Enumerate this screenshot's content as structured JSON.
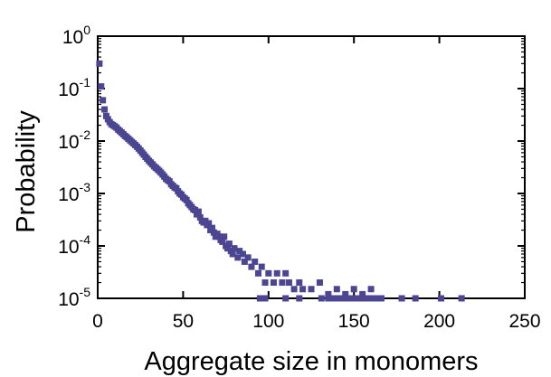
{
  "chart_data": {
    "type": "scatter",
    "title": "",
    "xlabel": "Aggregate size in monomers",
    "ylabel": "Probability",
    "xlim": [
      0,
      250
    ],
    "ylim": [
      1e-05,
      1
    ],
    "yscale": "log",
    "grid": false,
    "marker_color": "#4b4592",
    "x_ticks": [
      {
        "value": 0,
        "label": "0"
      },
      {
        "value": 50,
        "label": "50"
      },
      {
        "value": 100,
        "label": "100"
      },
      {
        "value": 150,
        "label": "150"
      },
      {
        "value": 200,
        "label": "200"
      },
      {
        "value": 250,
        "label": "250"
      }
    ],
    "y_ticks": [
      {
        "value": 1,
        "base": "10",
        "exp": "0"
      },
      {
        "value": 0.1,
        "base": "10",
        "exp": "-1"
      },
      {
        "value": 0.01,
        "base": "10",
        "exp": "-2"
      },
      {
        "value": 0.001,
        "base": "10",
        "exp": "-3"
      },
      {
        "value": 0.0001,
        "base": "10",
        "exp": "-4"
      },
      {
        "value": 1e-05,
        "base": "10",
        "exp": "-5"
      }
    ],
    "series": [
      {
        "points": [
          [
            1,
            0.3
          ],
          [
            2,
            0.11
          ],
          [
            3,
            0.06
          ],
          [
            4,
            0.04
          ],
          [
            5,
            0.03
          ],
          [
            6,
            0.026
          ],
          [
            7,
            0.023
          ],
          [
            8,
            0.021
          ],
          [
            9,
            0.02
          ],
          [
            10,
            0.019
          ],
          [
            11,
            0.018
          ],
          [
            12,
            0.0165
          ],
          [
            13,
            0.0155
          ],
          [
            14,
            0.0145
          ],
          [
            15,
            0.0135
          ],
          [
            16,
            0.0125
          ],
          [
            17,
            0.0118
          ],
          [
            18,
            0.011
          ],
          [
            19,
            0.0103
          ],
          [
            20,
            0.0096
          ],
          [
            21,
            0.009
          ],
          [
            22,
            0.0084
          ],
          [
            23,
            0.0078
          ],
          [
            24,
            0.0072
          ],
          [
            25,
            0.0066
          ],
          [
            26,
            0.006
          ],
          [
            27,
            0.0055
          ],
          [
            28,
            0.005
          ],
          [
            29,
            0.0046
          ],
          [
            30,
            0.0042
          ],
          [
            31,
            0.0039
          ],
          [
            32,
            0.0036
          ],
          [
            33,
            0.0033
          ],
          [
            34,
            0.0031
          ],
          [
            35,
            0.0029
          ],
          [
            36,
            0.0027
          ],
          [
            37,
            0.0025
          ],
          [
            38,
            0.0023
          ],
          [
            39,
            0.0021
          ],
          [
            40,
            0.0019
          ],
          [
            41,
            0.0018
          ],
          [
            42,
            0.0017
          ],
          [
            43,
            0.0015
          ],
          [
            44,
            0.0014
          ],
          [
            45,
            0.0013
          ],
          [
            46,
            0.00125
          ],
          [
            47,
            0.0011
          ],
          [
            48,
            0.001
          ],
          [
            49,
            0.00095
          ],
          [
            50,
            0.00085
          ],
          [
            51,
            0.0008
          ],
          [
            52,
            0.00075
          ],
          [
            53,
            0.00065
          ],
          [
            54,
            0.0006
          ],
          [
            55,
            0.00055
          ],
          [
            56,
            0.0005
          ],
          [
            57,
            0.00048
          ],
          [
            58,
            0.0004
          ],
          [
            59,
            0.00045
          ],
          [
            60,
            0.00035
          ],
          [
            61,
            0.0003
          ],
          [
            62,
            0.00028
          ],
          [
            63,
            0.0003
          ],
          [
            64,
            0.00025
          ],
          [
            65,
            0.00027
          ],
          [
            66,
            0.0002
          ],
          [
            67,
            0.00022
          ],
          [
            68,
            0.00018
          ],
          [
            69,
            0.00015
          ],
          [
            70,
            0.00017
          ],
          [
            71,
            0.00015
          ],
          [
            72,
            0.00013
          ],
          [
            73,
            0.00012
          ],
          [
            74,
            0.00015
          ],
          [
            75,
            0.0001
          ],
          [
            76,
            9e-05
          ],
          [
            77,
            0.00011
          ],
          [
            78,
            8e-05
          ],
          [
            79,
            7e-05
          ],
          [
            80,
            9e-05
          ],
          [
            82,
            6e-05
          ],
          [
            83,
            8e-05
          ],
          [
            85,
            7e-05
          ],
          [
            86,
            5e-05
          ],
          [
            88,
            6e-05
          ],
          [
            90,
            4e-05
          ],
          [
            92,
            5e-05
          ],
          [
            94,
            3e-05
          ],
          [
            96,
            4e-05
          ],
          [
            98,
            2e-05
          ],
          [
            100,
            3e-05
          ],
          [
            103,
            2e-05
          ],
          [
            105,
            3e-05
          ],
          [
            108,
            2e-05
          ],
          [
            110,
            3e-05
          ],
          [
            112,
            2e-05
          ],
          [
            115,
            1.5e-05
          ],
          [
            118,
            2e-05
          ],
          [
            120,
            1.5e-05
          ],
          [
            125,
            1.5e-05
          ],
          [
            130,
            2e-05
          ],
          [
            135,
            1.2e-05
          ],
          [
            140,
            1.5e-05
          ],
          [
            145,
            1.2e-05
          ],
          [
            150,
            1.5e-05
          ],
          [
            155,
            1.2e-05
          ],
          [
            160,
            1.5e-05
          ],
          [
            95,
            1e-05
          ],
          [
            98,
            1e-05
          ],
          [
            110,
            1e-05
          ],
          [
            118,
            1e-05
          ],
          [
            131,
            1e-05
          ],
          [
            135,
            1e-05
          ],
          [
            136,
            1e-05
          ],
          [
            139,
            1e-05
          ],
          [
            140,
            1e-05
          ],
          [
            141,
            1e-05
          ],
          [
            142,
            1e-05
          ],
          [
            143,
            1e-05
          ],
          [
            145,
            1e-05
          ],
          [
            147,
            1e-05
          ],
          [
            149,
            1e-05
          ],
          [
            150,
            1e-05
          ],
          [
            152,
            1e-05
          ],
          [
            154,
            1e-05
          ],
          [
            156,
            1e-05
          ],
          [
            158,
            1e-05
          ],
          [
            160,
            1e-05
          ],
          [
            162,
            1e-05
          ],
          [
            164,
            1e-05
          ],
          [
            166,
            1e-05
          ],
          [
            178,
            1e-05
          ],
          [
            186,
            1e-05
          ],
          [
            201,
            1e-05
          ],
          [
            213,
            1e-05
          ]
        ]
      }
    ]
  }
}
